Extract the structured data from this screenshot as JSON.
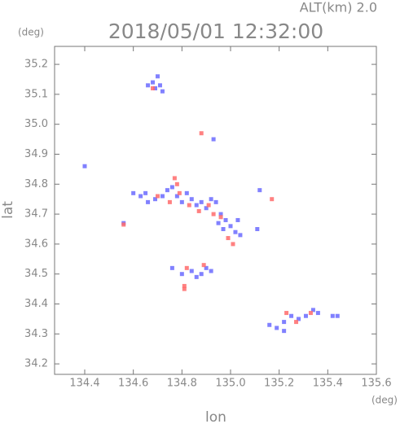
{
  "chart_data": {
    "type": "scatter",
    "title": "2018/05/01 12:32:00",
    "subtitle": "ALT(km) 2.0",
    "x_label": "lon",
    "y_label": "lat",
    "x_unit": "(deg)",
    "y_unit": "(deg)",
    "xlim": [
      134.276,
      135.6
    ],
    "ylim": [
      34.165,
      35.26
    ],
    "xticks": [
      134.4,
      134.6,
      134.8,
      {
        "value": 135,
        "label": "135.0"
      },
      135.2,
      135.4,
      135.6
    ],
    "yticks": [
      34.2,
      34.3,
      34.4,
      34.5,
      34.6,
      34.7,
      34.8,
      34.9,
      {
        "value": 35,
        "label": "35.0"
      },
      35.1,
      35.2
    ],
    "series": [
      {
        "color": "#6b6bff",
        "x": [
          134.66,
          134.68,
          134.7,
          134.69,
          134.71,
          134.72,
          134.4,
          134.56,
          134.6,
          134.63,
          134.65,
          134.66,
          134.69,
          134.72,
          134.74,
          134.76,
          134.78,
          134.8,
          134.82,
          134.84,
          134.86,
          134.88,
          134.9,
          134.92,
          134.94,
          134.96,
          134.98,
          135.0,
          135.02,
          135.04,
          135.03,
          134.95,
          134.97,
          134.93,
          134.76,
          134.8,
          134.84,
          134.86,
          134.88,
          134.9,
          134.92,
          135.12,
          135.11,
          135.16,
          135.19,
          135.22,
          135.25,
          135.28,
          135.31,
          135.34,
          135.36,
          135.42,
          135.44,
          135.22
        ],
        "values": [
          35.13,
          35.14,
          35.16,
          35.12,
          35.13,
          35.11,
          34.86,
          34.67,
          34.77,
          34.76,
          34.77,
          34.74,
          34.75,
          34.76,
          34.78,
          34.79,
          34.76,
          34.74,
          34.77,
          34.75,
          34.73,
          34.74,
          34.72,
          34.75,
          34.74,
          34.7,
          34.68,
          34.66,
          34.64,
          34.63,
          34.68,
          34.67,
          34.65,
          34.95,
          34.52,
          34.5,
          34.51,
          34.49,
          34.5,
          34.52,
          34.51,
          34.78,
          34.65,
          34.33,
          34.32,
          34.34,
          34.36,
          34.35,
          34.36,
          34.38,
          34.37,
          34.36,
          34.36,
          34.31
        ]
      },
      {
        "color": "#ff6b6b",
        "x": [
          134.68,
          134.77,
          134.78,
          134.88,
          134.56,
          134.7,
          134.75,
          134.79,
          134.83,
          134.87,
          134.91,
          134.93,
          134.96,
          134.99,
          135.01,
          134.82,
          134.89,
          134.81,
          134.81,
          135.17,
          135.23,
          135.27,
          135.33
        ],
        "values": [
          35.12,
          34.82,
          34.8,
          34.97,
          34.665,
          34.76,
          34.74,
          34.77,
          34.73,
          34.71,
          34.73,
          34.7,
          34.69,
          34.62,
          34.6,
          34.52,
          34.53,
          34.46,
          34.45,
          34.75,
          34.37,
          34.34,
          34.37
        ]
      }
    ]
  }
}
